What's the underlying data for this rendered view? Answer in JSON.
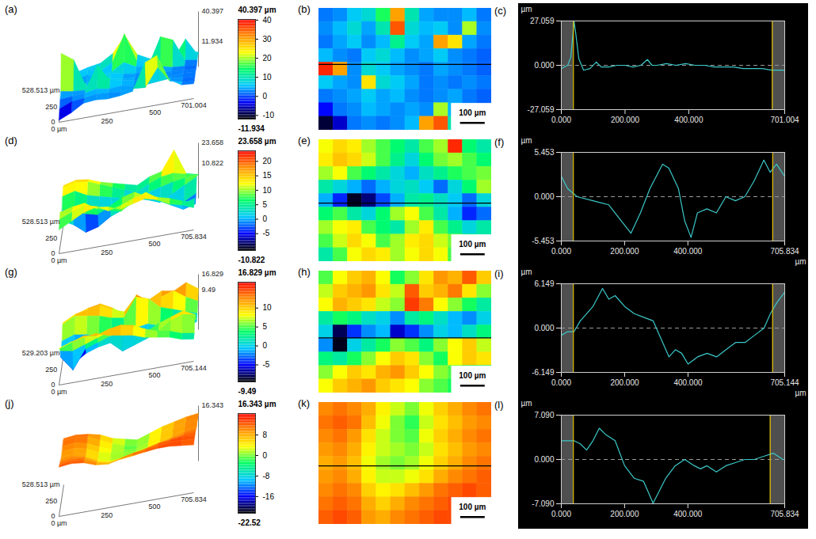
{
  "chart_data": [
    {
      "type": "surface_map_profile",
      "panels": {
        "surface": "(a)",
        "map": "(b)",
        "profile": "(c)"
      },
      "xlim": [
        0,
        701.004
      ],
      "ylim": [
        0,
        528.513
      ],
      "cells": [
        [
          2,
          3,
          6,
          8,
          15,
          30,
          10,
          4,
          3,
          3,
          5,
          2
        ],
        [
          3,
          5,
          8,
          4,
          10,
          35,
          8,
          5,
          6,
          3,
          20,
          3
        ],
        [
          2,
          4,
          6,
          3,
          5,
          12,
          6,
          4,
          30,
          25,
          4,
          2
        ],
        [
          5,
          3,
          2,
          6,
          8,
          5,
          3,
          4,
          6,
          3,
          2,
          1
        ],
        [
          38,
          30,
          3,
          8,
          6,
          4,
          3,
          2,
          4,
          3,
          2,
          1
        ],
        [
          6,
          4,
          3,
          25,
          8,
          6,
          4,
          2,
          3,
          2,
          3,
          2
        ],
        [
          2,
          3,
          4,
          6,
          4,
          5,
          3,
          2,
          3,
          4,
          2,
          1
        ],
        [
          -3,
          2,
          3,
          5,
          4,
          3,
          4,
          3,
          20,
          5,
          2,
          1
        ],
        [
          -10,
          -5,
          2,
          3,
          2,
          3,
          5,
          30,
          35,
          10,
          3,
          2
        ]
      ],
      "surface": {
        "xticks": [
          {
            "value": 0,
            "label": "0 µm"
          },
          250,
          500,
          701.004
        ],
        "yticks": [
          0,
          250,
          {
            "value": 528.513,
            "label": "528.513 µm"
          }
        ],
        "zlabels": [
          40.397,
          11.934
        ]
      },
      "colorbar": {
        "range": [
          -11.934,
          40.397
        ],
        "ticks": [
          40,
          30,
          20,
          10,
          0,
          -10
        ],
        "max_label": "40.397 µm",
        "min_label": "-11.934"
      },
      "map": {
        "profile_y": 243,
        "scale_bar": {
          "length": 100,
          "label": "100 µm"
        }
      },
      "profile": {
        "x": [
          0,
          10,
          20,
          30,
          40,
          45,
          55,
          70,
          90,
          110,
          125,
          150,
          175,
          200,
          225,
          250,
          270,
          285,
          300,
          330,
          360,
          390,
          420,
          450,
          480,
          510,
          540,
          570,
          600,
          630,
          660,
          690,
          701.004
        ],
        "values": [
          -2,
          -1,
          0,
          5,
          27,
          20,
          4,
          -3,
          -2,
          2,
          -1,
          -1,
          0,
          0,
          -1,
          0,
          3.5,
          0,
          0,
          1,
          0,
          1,
          0,
          0,
          -1,
          -1,
          -1,
          -2,
          -2,
          -2,
          -3,
          -3,
          -3
        ],
        "xlim": [
          0,
          701.004
        ],
        "xticks": [
          {
            "value": 0,
            "label": "0.000"
          },
          {
            "value": 200,
            "label": "200.000"
          },
          {
            "value": 400,
            "label": "400.000"
          },
          701.004
        ],
        "ylim": [
          -27.059,
          27.059
        ],
        "yticks": [
          -27.059,
          {
            "value": 0,
            "label": "0.000"
          },
          27.059
        ],
        "y_label": "µm",
        "markers": [
          38,
          662
        ],
        "color": "#3cc8c8"
      }
    },
    {
      "type": "surface_map_profile",
      "panels": {
        "surface": "(d)",
        "map": "(e)",
        "profile": "(f)"
      },
      "xlim": [
        0,
        705.834
      ],
      "ylim": [
        0,
        528.513
      ],
      "cells": [
        [
          12,
          14,
          13,
          10,
          8,
          6,
          4,
          8,
          10,
          22,
          6,
          4
        ],
        [
          13,
          15,
          14,
          11,
          8,
          5,
          2,
          6,
          9,
          10,
          8,
          6
        ],
        [
          10,
          12,
          8,
          6,
          4,
          2,
          0,
          3,
          5,
          7,
          8,
          9
        ],
        [
          4,
          2,
          0,
          -2,
          0,
          2,
          3,
          1,
          -2,
          2,
          6,
          10
        ],
        [
          0,
          -4,
          -10,
          -8,
          -3,
          0,
          4,
          5,
          3,
          1,
          -2,
          2
        ],
        [
          6,
          8,
          4,
          2,
          6,
          10,
          12,
          8,
          4,
          0,
          -4,
          -2
        ],
        [
          10,
          12,
          13,
          8,
          6,
          4,
          10,
          13,
          8,
          5,
          2,
          4
        ],
        [
          8,
          11,
          14,
          12,
          8,
          10,
          13,
          14,
          11,
          9,
          6,
          4
        ],
        [
          4,
          8,
          12,
          14,
          13,
          10,
          12,
          14,
          12,
          8,
          6,
          3
        ]
      ],
      "surface": {
        "xticks": [
          {
            "value": 0,
            "label": "0 µm"
          },
          250,
          500,
          705.834
        ],
        "yticks": [
          0,
          250,
          {
            "value": 528.513,
            "label": "528.513 µm"
          }
        ],
        "zlabels": [
          23.658,
          10.822
        ]
      },
      "colorbar": {
        "range": [
          -10.822,
          23.658
        ],
        "ticks": [
          20,
          15,
          10,
          5,
          0,
          -5
        ],
        "max_label": "23.658 µm",
        "min_label": "-10.822"
      },
      "map": {
        "profile_y": 275,
        "scale_bar": {
          "length": 100,
          "label": "100 µm"
        }
      },
      "profile": {
        "x": [
          0,
          20,
          50,
          100,
          150,
          190,
          220,
          250,
          280,
          320,
          340,
          370,
          390,
          410,
          430,
          460,
          490,
          520,
          550,
          580,
          610,
          640,
          660,
          680,
          705.834
        ],
        "values": [
          2.5,
          1,
          0,
          -0.5,
          -1,
          -3,
          -4.5,
          -2,
          1,
          4,
          3.5,
          1,
          -3,
          -5,
          -2,
          -1.5,
          -2,
          0,
          -0.5,
          0,
          2,
          4.5,
          3,
          4,
          2.5
        ],
        "xlim": [
          0,
          705.834
        ],
        "xticks": [
          {
            "value": 0,
            "label": "0.000"
          },
          {
            "value": 200,
            "label": "200.000"
          },
          {
            "value": 400,
            "label": "400.000"
          },
          705.834
        ],
        "ylim": [
          -5.453,
          5.453
        ],
        "yticks": [
          -5.453,
          {
            "value": 0,
            "label": "0.000"
          },
          5.453
        ],
        "y_label": "µm",
        "x_label": "µm",
        "markers": [
          38,
          668
        ],
        "color": "#3cc8c8"
      }
    },
    {
      "type": "surface_map_profile",
      "panels": {
        "surface": "(g)",
        "map": "(h)",
        "profile": "(i)"
      },
      "xlim": [
        0,
        705.144
      ],
      "ylim": [
        0,
        529.203
      ],
      "cells": [
        [
          5,
          8,
          10,
          11,
          8,
          4,
          6,
          9,
          12,
          11,
          14,
          10
        ],
        [
          7,
          10,
          11,
          12,
          9,
          7,
          14,
          10,
          11,
          13,
          9,
          6
        ],
        [
          8,
          11,
          10,
          9,
          7,
          6,
          15,
          13,
          8,
          6,
          4,
          2
        ],
        [
          2,
          4,
          3,
          1,
          0,
          -2,
          2,
          3,
          1,
          -1,
          -2,
          0
        ],
        [
          0,
          -8,
          -4,
          -2,
          -1,
          -6,
          -4,
          -2,
          0,
          -1,
          1,
          3
        ],
        [
          -2,
          -9,
          0,
          2,
          4,
          6,
          5,
          3,
          6,
          8,
          10,
          7
        ],
        [
          3,
          2,
          4,
          6,
          8,
          10,
          9,
          6,
          4,
          8,
          10,
          9
        ],
        [
          6,
          8,
          10,
          9,
          11,
          12,
          10,
          8,
          6,
          5,
          3,
          2
        ],
        [
          8,
          10,
          11,
          12,
          10,
          9,
          8,
          6,
          5,
          4,
          2,
          1
        ]
      ],
      "surface": {
        "xticks": [
          {
            "value": 0,
            "label": "0 µm"
          },
          250,
          500,
          705.144
        ],
        "yticks": [
          0,
          250,
          {
            "value": 529.203,
            "label": "529.203 µm"
          }
        ],
        "zlabels": [
          16.829,
          9.49
        ]
      },
      "colorbar": {
        "range": [
          -9.49,
          16.829
        ],
        "ticks": [
          10,
          5,
          0,
          -5
        ],
        "max_label": "16.829 µm",
        "min_label": "-9.49"
      },
      "map": {
        "profile_y": 290,
        "scale_bar": {
          "length": 100,
          "label": "100 µm"
        }
      },
      "profile": {
        "x": [
          0,
          20,
          40,
          60,
          80,
          100,
          130,
          150,
          170,
          200,
          230,
          260,
          290,
          320,
          340,
          360,
          380,
          400,
          430,
          460,
          490,
          520,
          550,
          580,
          610,
          640,
          660,
          680,
          705.144
        ],
        "values": [
          -1,
          -0.5,
          -0.5,
          1,
          2,
          3,
          5.5,
          4,
          4.5,
          3,
          2,
          1.5,
          1,
          -2,
          -4,
          -3,
          -3.5,
          -5,
          -4,
          -3.5,
          -4,
          -3,
          -2,
          -2,
          -1,
          0,
          2,
          3.5,
          5
        ],
        "xlim": [
          0,
          705.144
        ],
        "xticks": [
          {
            "value": 0,
            "label": "0.000"
          },
          {
            "value": 200,
            "label": "200.000"
          },
          {
            "value": 400,
            "label": "400.000"
          },
          705.144
        ],
        "ylim": [
          -6.149,
          6.149
        ],
        "yticks": [
          -6.149,
          {
            "value": 0,
            "label": "0.000"
          },
          6.149
        ],
        "y_label": "µm",
        "x_label": "µm",
        "markers": [
          38,
          667
        ],
        "color": "#3cc8c8"
      }
    },
    {
      "type": "surface_map_profile",
      "panels": {
        "surface": "(j)",
        "map": "(k)",
        "profile": "(l)"
      },
      "xlim": [
        0,
        705.834
      ],
      "ylim": [
        0,
        528.513
      ],
      "cells": [
        [
          10,
          11,
          10,
          8,
          4,
          2,
          0,
          3,
          6,
          8,
          10,
          11
        ],
        [
          11,
          12,
          11,
          7,
          3,
          0,
          -2,
          2,
          5,
          7,
          9,
          10
        ],
        [
          10,
          11,
          9,
          5,
          2,
          0,
          -1,
          3,
          6,
          8,
          10,
          11
        ],
        [
          9,
          10,
          8,
          4,
          2,
          1,
          0,
          2,
          5,
          7,
          9,
          10
        ],
        [
          8,
          9,
          7,
          3,
          1,
          0,
          1,
          3,
          6,
          8,
          10,
          11
        ],
        [
          9,
          10,
          8,
          4,
          2,
          2,
          3,
          5,
          8,
          10,
          11,
          12
        ],
        [
          10,
          11,
          10,
          6,
          4,
          5,
          7,
          9,
          11,
          12,
          13,
          12
        ],
        [
          11,
          12,
          11,
          8,
          6,
          8,
          10,
          11,
          12,
          13,
          13,
          12
        ],
        [
          12,
          13,
          12,
          9,
          8,
          10,
          11,
          12,
          13,
          13,
          12,
          11
        ]
      ],
      "surface": {
        "xticks": [
          {
            "value": 0,
            "label": "0 µm"
          },
          250,
          500,
          705.834
        ],
        "yticks": [
          0,
          250,
          {
            "value": 528.513,
            "label": "528.513 µm"
          }
        ],
        "zlabels": [
          16.343
        ]
      },
      "colorbar": {
        "range": [
          -22.52,
          16.343
        ],
        "ticks": [
          8,
          0,
          -8,
          -16
        ],
        "max_label": "16.343 µm",
        "min_label": "-22.52"
      },
      "map": {
        "profile_y": 275,
        "scale_bar": {
          "length": 100,
          "label": "100 µm"
        }
      },
      "profile": {
        "x": [
          0,
          20,
          40,
          60,
          80,
          100,
          120,
          140,
          170,
          200,
          230,
          260,
          290,
          310,
          330,
          360,
          390,
          420,
          440,
          460,
          490,
          520,
          550,
          580,
          610,
          640,
          670,
          700,
          705.834
        ],
        "values": [
          3,
          3,
          3,
          2.5,
          1.5,
          3,
          5,
          4,
          3,
          -1,
          -3,
          -3.5,
          -7,
          -5,
          -3,
          -1,
          0,
          -1,
          -1.5,
          -1,
          -2,
          -1,
          -0.5,
          0,
          0,
          0.5,
          1,
          0,
          0
        ],
        "xlim": [
          0,
          705.834
        ],
        "xticks": [
          {
            "value": 0,
            "label": "0.000"
          },
          {
            "value": 200,
            "label": "200.000"
          },
          {
            "value": 400,
            "label": "400.000"
          },
          705.834
        ],
        "ylim": [
          -7.09,
          7.09
        ],
        "yticks": [
          {
            "value": -7.09,
            "label": "-7.090"
          },
          {
            "value": 0,
            "label": "0.000"
          },
          {
            "value": 7.09,
            "label": "7.090"
          }
        ],
        "y_label": "µm",
        "markers": [
          38,
          660
        ],
        "color": "#3cc8c8"
      }
    }
  ]
}
